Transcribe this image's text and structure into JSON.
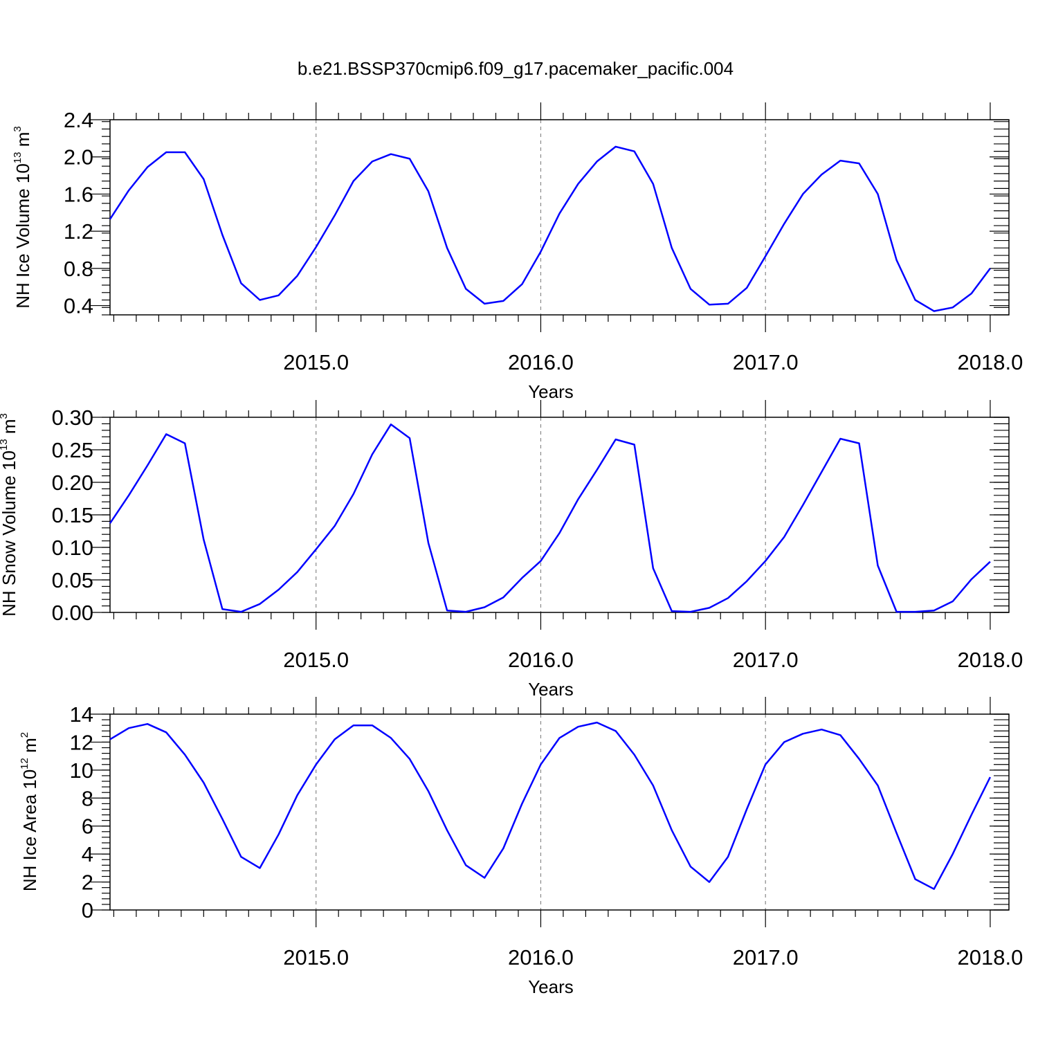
{
  "title": "b.e21.BSSP370cmip6.f09_g17.pacemaker_pacific.004",
  "colors": {
    "line": "#0000ff",
    "axis": "#000000",
    "grid": "#888888"
  },
  "chart_data": [
    {
      "type": "line",
      "ylabel": "NH Ice Volume 10",
      "ylabel_exp": "13",
      "ylabel_unit": " m",
      "ylabel_unit_exp": "3",
      "xlabel": "Years",
      "xlim": [
        2014.0833,
        2018.0833
      ],
      "ylim": [
        0.3,
        2.4
      ],
      "yticks": [
        0.4,
        0.8,
        1.2,
        1.6,
        2.0,
        2.4
      ],
      "ytick_labels": [
        "0.4",
        "0.8",
        "1.2",
        "1.6",
        "2.0",
        "2.4"
      ],
      "xticks": [
        2015.0,
        2016.0,
        2017.0,
        2018.0
      ],
      "xtick_labels": [
        "2015.0",
        "2016.0",
        "2017.0",
        "2018.0"
      ],
      "grid": "dashed vertical at year ticks",
      "x_start": 2014.0833,
      "x_step": 0.08333,
      "values": [
        1.33,
        1.64,
        1.89,
        2.05,
        2.05,
        1.76,
        1.16,
        0.64,
        0.46,
        0.51,
        0.72,
        1.03,
        1.37,
        1.74,
        1.95,
        2.03,
        1.98,
        1.63,
        1.02,
        0.58,
        0.42,
        0.45,
        0.63,
        0.98,
        1.39,
        1.71,
        1.95,
        2.11,
        2.06,
        1.71,
        1.02,
        0.58,
        0.41,
        0.42,
        0.59,
        0.93,
        1.28,
        1.6,
        1.81,
        1.96,
        1.93,
        1.6,
        0.89,
        0.46,
        0.34,
        0.38,
        0.53,
        0.8
      ]
    },
    {
      "type": "line",
      "ylabel": "NH Snow Volume 10",
      "ylabel_exp": "13",
      "ylabel_unit": " m",
      "ylabel_unit_exp": "3",
      "xlabel": "Years",
      "xlim": [
        2014.0833,
        2018.0833
      ],
      "ylim": [
        0.0,
        0.3
      ],
      "yticks": [
        0.0,
        0.05,
        0.1,
        0.15,
        0.2,
        0.25,
        0.3
      ],
      "ytick_labels": [
        "0.00",
        "0.05",
        "0.10",
        "0.15",
        "0.20",
        "0.25",
        "0.30"
      ],
      "xticks": [
        2015.0,
        2016.0,
        2017.0,
        2018.0
      ],
      "xtick_labels": [
        "2015.0",
        "2016.0",
        "2017.0",
        "2018.0"
      ],
      "grid": "dashed vertical at year ticks",
      "x_start": 2014.0833,
      "x_step": 0.08333,
      "values": [
        0.137,
        0.18,
        0.226,
        0.274,
        0.26,
        0.112,
        0.005,
        0.001,
        0.013,
        0.035,
        0.062,
        0.097,
        0.133,
        0.182,
        0.243,
        0.289,
        0.268,
        0.107,
        0.003,
        0.001,
        0.008,
        0.023,
        0.053,
        0.079,
        0.122,
        0.174,
        0.219,
        0.266,
        0.258,
        0.068,
        0.002,
        0.001,
        0.007,
        0.022,
        0.048,
        0.079,
        0.116,
        0.165,
        0.216,
        0.267,
        0.26,
        0.072,
        0.001,
        0.001,
        0.003,
        0.017,
        0.051,
        0.078
      ]
    },
    {
      "type": "line",
      "ylabel": "NH Ice Area 10",
      "ylabel_exp": "12",
      "ylabel_unit": " m",
      "ylabel_unit_exp": "2",
      "xlabel": "Years",
      "xlim": [
        2014.0833,
        2018.0833
      ],
      "ylim": [
        0,
        14
      ],
      "yticks": [
        0,
        2,
        4,
        6,
        8,
        10,
        12,
        14
      ],
      "ytick_labels": [
        "0",
        "2",
        "4",
        "6",
        "8",
        "10",
        "12",
        "14"
      ],
      "xticks": [
        2015.0,
        2016.0,
        2017.0,
        2018.0
      ],
      "xtick_labels": [
        "2015.0",
        "2016.0",
        "2017.0",
        "2018.0"
      ],
      "grid": "dashed vertical at year ticks",
      "x_start": 2014.0833,
      "x_step": 0.08333,
      "values": [
        12.2,
        13.0,
        13.3,
        12.7,
        11.1,
        9.1,
        6.5,
        3.8,
        3.0,
        5.4,
        8.2,
        10.4,
        12.2,
        13.2,
        13.2,
        12.3,
        10.8,
        8.5,
        5.7,
        3.2,
        2.3,
        4.4,
        7.6,
        10.4,
        12.3,
        13.1,
        13.4,
        12.8,
        11.1,
        8.9,
        5.7,
        3.1,
        2.0,
        3.8,
        7.2,
        10.4,
        12.0,
        12.6,
        12.9,
        12.5,
        10.8,
        8.9,
        5.5,
        2.2,
        1.5,
        4.0,
        6.8,
        9.5
      ]
    }
  ]
}
